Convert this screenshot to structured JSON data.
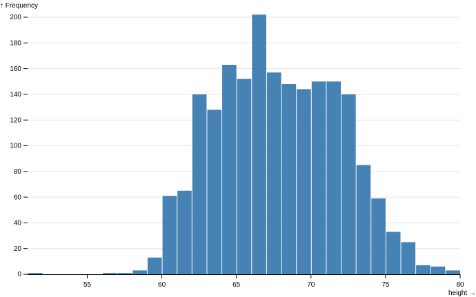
{
  "chart_data": {
    "type": "bar",
    "subtype": "histogram",
    "title": "",
    "xlabel": "height →",
    "ylabel": "↑ Frequency",
    "xlim": [
      51,
      80
    ],
    "ylim": [
      0,
      200
    ],
    "bar_color": "#4682b4",
    "grid": {
      "x": false,
      "y": true
    },
    "x_ticks": [
      55,
      60,
      65,
      70,
      75,
      80
    ],
    "y_ticks": [
      0,
      20,
      40,
      60,
      80,
      100,
      120,
      140,
      160,
      180,
      200
    ],
    "bins": [
      {
        "x0": 51,
        "x1": 52,
        "count": 1
      },
      {
        "x0": 52,
        "x1": 53,
        "count": 0
      },
      {
        "x0": 53,
        "x1": 54,
        "count": 0
      },
      {
        "x0": 54,
        "x1": 55,
        "count": 0
      },
      {
        "x0": 55,
        "x1": 56,
        "count": 0
      },
      {
        "x0": 56,
        "x1": 57,
        "count": 1
      },
      {
        "x0": 57,
        "x1": 58,
        "count": 1
      },
      {
        "x0": 58,
        "x1": 59,
        "count": 3
      },
      {
        "x0": 59,
        "x1": 60,
        "count": 13
      },
      {
        "x0": 60,
        "x1": 61,
        "count": 61
      },
      {
        "x0": 61,
        "x1": 62,
        "count": 65
      },
      {
        "x0": 62,
        "x1": 63,
        "count": 140
      },
      {
        "x0": 63,
        "x1": 64,
        "count": 128
      },
      {
        "x0": 64,
        "x1": 65,
        "count": 163
      },
      {
        "x0": 65,
        "x1": 66,
        "count": 152
      },
      {
        "x0": 66,
        "x1": 67,
        "count": 202
      },
      {
        "x0": 67,
        "x1": 68,
        "count": 157
      },
      {
        "x0": 68,
        "x1": 69,
        "count": 148
      },
      {
        "x0": 69,
        "x1": 70,
        "count": 144
      },
      {
        "x0": 70,
        "x1": 71,
        "count": 150
      },
      {
        "x0": 71,
        "x1": 72,
        "count": 150
      },
      {
        "x0": 72,
        "x1": 73,
        "count": 140
      },
      {
        "x0": 73,
        "x1": 74,
        "count": 85
      },
      {
        "x0": 74,
        "x1": 75,
        "count": 59
      },
      {
        "x0": 75,
        "x1": 76,
        "count": 33
      },
      {
        "x0": 76,
        "x1": 77,
        "count": 25
      },
      {
        "x0": 77,
        "x1": 78,
        "count": 7
      },
      {
        "x0": 78,
        "x1": 79,
        "count": 6
      },
      {
        "x0": 79,
        "x1": 80,
        "count": 3
      }
    ]
  }
}
